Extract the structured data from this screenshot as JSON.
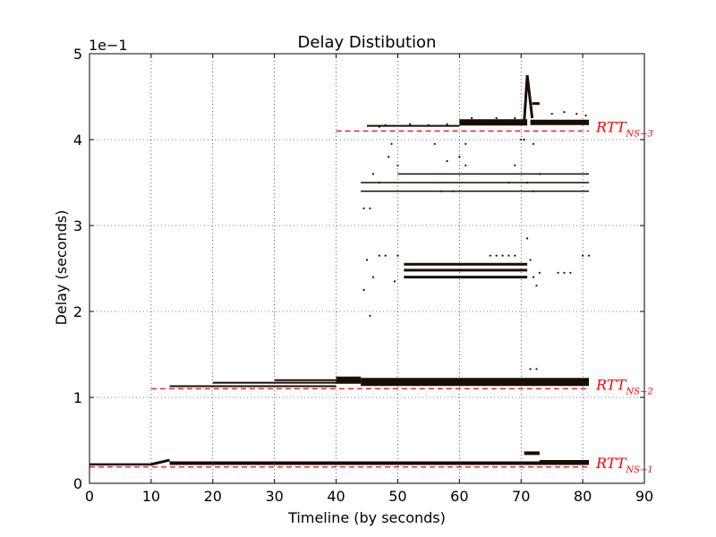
{
  "chart_data": {
    "type": "scatter",
    "title": "Delay Distibution",
    "xlabel": "Timeline (by seconds)",
    "ylabel": "Delay (seconds)",
    "y_scale_label": "1e−1",
    "xlim": [
      0,
      90
    ],
    "ylim": [
      0,
      5
    ],
    "x_ticks": [
      0,
      10,
      20,
      30,
      40,
      50,
      60,
      70,
      80,
      90
    ],
    "y_ticks": [
      0,
      1,
      2,
      3,
      4,
      5
    ],
    "grid": true,
    "grid_style": "dotted",
    "colors": {
      "points": "#1a0d00",
      "reference": "#ff0000",
      "axes": "#000000"
    },
    "reference_lines": [
      {
        "label_main": "RTT",
        "label_sub": "NS−1",
        "y": 0.19,
        "x_start": 0,
        "x_end": 81
      },
      {
        "label_main": "RTT",
        "label_sub": "NS−2",
        "y": 1.1,
        "x_start": 10,
        "x_end": 81
      },
      {
        "label_main": "RTT",
        "label_sub": "NS−3",
        "y": 4.1,
        "x_start": 40,
        "x_end": 81
      }
    ],
    "segments": [
      {
        "x": [
          0,
          10
        ],
        "y": [
          0.22,
          0.22
        ],
        "w": 2.5
      },
      {
        "x": [
          10,
          13
        ],
        "y": [
          0.22,
          0.27
        ],
        "w": 3
      },
      {
        "x": [
          13,
          81
        ],
        "y": [
          0.235,
          0.235
        ],
        "w": 4
      },
      {
        "x": [
          13,
          40
        ],
        "y": [
          1.13,
          1.13
        ],
        "w": 2
      },
      {
        "x": [
          20,
          40
        ],
        "y": [
          1.17,
          1.17
        ],
        "w": 2
      },
      {
        "x": [
          30,
          40
        ],
        "y": [
          1.2,
          1.2
        ],
        "w": 2
      },
      {
        "x": [
          40,
          44
        ],
        "y": [
          1.2,
          1.2
        ],
        "w": 8
      },
      {
        "x": [
          44,
          81
        ],
        "y": [
          1.18,
          1.18
        ],
        "w": 9
      },
      {
        "x": [
          51,
          71
        ],
        "y": [
          2.55,
          2.55
        ],
        "w": 3
      },
      {
        "x": [
          51,
          71
        ],
        "y": [
          2.48,
          2.48
        ],
        "w": 3
      },
      {
        "x": [
          51,
          71
        ],
        "y": [
          2.4,
          2.4
        ],
        "w": 3
      },
      {
        "x": [
          60,
          71
        ],
        "y": [
          4.2,
          4.2
        ],
        "w": 7
      },
      {
        "x": [
          71.5,
          81
        ],
        "y": [
          4.2,
          4.2
        ],
        "w": 6
      },
      {
        "x": [
          45,
          60
        ],
        "y": [
          4.16,
          4.16
        ],
        "w": 2
      },
      {
        "x": [
          44,
          81
        ],
        "y": [
          3.4,
          3.4
        ],
        "w": 1.5
      },
      {
        "x": [
          44,
          81
        ],
        "y": [
          3.5,
          3.5
        ],
        "w": 1.5
      },
      {
        "x": [
          50,
          81
        ],
        "y": [
          3.6,
          3.6
        ],
        "w": 1.5
      },
      {
        "x": [
          70.5,
          71
        ],
        "y": [
          4.2,
          4.75
        ],
        "w": 3
      },
      {
        "x": [
          71,
          71.8
        ],
        "y": [
          4.75,
          4.25
        ],
        "w": 3
      },
      {
        "x": [
          71.8,
          73
        ],
        "y": [
          4.42,
          4.42
        ],
        "w": 3
      },
      {
        "x": [
          70.5,
          73
        ],
        "y": [
          0.35,
          0.35
        ],
        "w": 4
      },
      {
        "x": [
          73,
          81
        ],
        "y": [
          0.25,
          0.25
        ],
        "w": 4
      }
    ],
    "points": [
      [
        44.5,
        2.25
      ],
      [
        45,
        2.6
      ],
      [
        45.5,
        1.95
      ],
      [
        46,
        2.4
      ],
      [
        47,
        2.65
      ],
      [
        48,
        2.65
      ],
      [
        49.5,
        2.35
      ],
      [
        50,
        2.65
      ],
      [
        44.5,
        3.2
      ],
      [
        45.5,
        3.2
      ],
      [
        46,
        3.6
      ],
      [
        47,
        3.5
      ],
      [
        48.5,
        3.8
      ],
      [
        49,
        3.95
      ],
      [
        50,
        3.7
      ],
      [
        56,
        3.95
      ],
      [
        58,
        3.75
      ],
      [
        61,
        3.95
      ],
      [
        61,
        3.7
      ],
      [
        65,
        2.65
      ],
      [
        66,
        2.65
      ],
      [
        67,
        2.65
      ],
      [
        68,
        2.65
      ],
      [
        69,
        2.65
      ],
      [
        70,
        4.0
      ],
      [
        70.5,
        4.0
      ],
      [
        71,
        3.5
      ],
      [
        72,
        3.4
      ],
      [
        73,
        3.6
      ],
      [
        71,
        2.85
      ],
      [
        71.5,
        2.6
      ],
      [
        72,
        2.4
      ],
      [
        72.5,
        2.3
      ],
      [
        73,
        2.45
      ],
      [
        76,
        2.45
      ],
      [
        77,
        2.45
      ],
      [
        78,
        2.45
      ],
      [
        80,
        2.65
      ],
      [
        81,
        2.65
      ],
      [
        71.5,
        1.33
      ],
      [
        72.5,
        1.33
      ],
      [
        47,
        4.15
      ],
      [
        48,
        4.17
      ],
      [
        52,
        4.18
      ],
      [
        55,
        4.17
      ],
      [
        58,
        4.18
      ],
      [
        62,
        4.25
      ],
      [
        66,
        4.25
      ],
      [
        69,
        4.25
      ],
      [
        75,
        4.3
      ],
      [
        77,
        4.32
      ],
      [
        79,
        4.3
      ],
      [
        80.5,
        4.28
      ],
      [
        68,
        3.5
      ],
      [
        69,
        3.7
      ],
      [
        72,
        3.95
      ],
      [
        60,
        3.8
      ],
      [
        59,
        3.4
      ],
      [
        57,
        3.4
      ]
    ]
  }
}
